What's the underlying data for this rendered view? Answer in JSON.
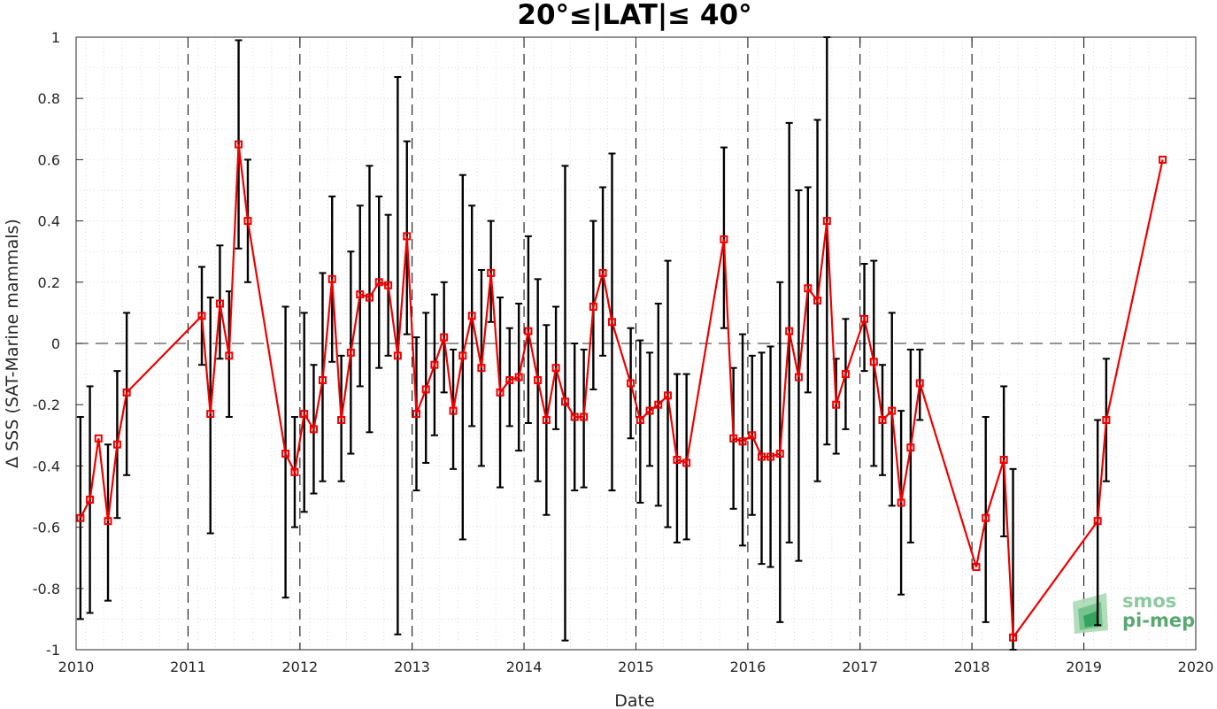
{
  "chart_data": {
    "type": "line",
    "title": "20°≤|LAT|≤ 40°",
    "xlabel": "Date",
    "ylabel": "Δ SSS (SAT-Marine mammals)",
    "xlim": [
      "2010-01-01",
      "2020-01-01"
    ],
    "ylim": [
      -1,
      1
    ],
    "x_ticks": [
      "2010",
      "2011",
      "2012",
      "2013",
      "2014",
      "2015",
      "2016",
      "2017",
      "2018",
      "2019",
      "2020"
    ],
    "y_ticks": [
      "-1",
      "-0.8",
      "-0.6",
      "-0.4",
      "-0.2",
      "0",
      "0.2",
      "0.4",
      "0.6",
      "0.8",
      "1"
    ],
    "year_separators": [
      "2011",
      "2012",
      "2013",
      "2014",
      "2015",
      "2016",
      "2017",
      "2018",
      "2019"
    ],
    "zero_line": 0,
    "grid": true,
    "colors": {
      "series": "#ee0000",
      "errorbar": "#000000",
      "grid": "#d0d0d0",
      "separator": "#000000"
    },
    "series": [
      {
        "x": [
          "2010-01-15",
          "2010-02-15",
          "2010-03-15",
          "2010-04-15",
          "2010-05-15",
          "2010-06-15",
          "2011-02-15",
          "2011-03-15",
          "2011-04-15",
          "2011-05-15",
          "2011-06-15",
          "2011-07-15",
          "2011-11-15",
          "2011-12-15",
          "2012-01-15",
          "2012-02-15",
          "2012-03-15",
          "2012-04-15",
          "2012-05-15",
          "2012-06-15",
          "2012-07-15",
          "2012-08-15",
          "2012-09-15",
          "2012-10-15",
          "2012-11-15",
          "2012-12-15",
          "2013-01-15",
          "2013-02-15",
          "2013-03-15",
          "2013-04-15",
          "2013-05-15",
          "2013-06-15",
          "2013-07-15",
          "2013-08-15",
          "2013-09-15",
          "2013-10-15",
          "2013-11-15",
          "2013-12-15",
          "2014-01-15",
          "2014-02-15",
          "2014-03-15",
          "2014-04-15",
          "2014-05-15",
          "2014-06-15",
          "2014-07-15",
          "2014-08-15",
          "2014-09-15",
          "2014-10-15",
          "2014-12-15",
          "2015-01-15",
          "2015-02-15",
          "2015-03-15",
          "2015-04-15",
          "2015-05-15",
          "2015-06-15",
          "2015-10-15",
          "2015-11-15",
          "2015-12-15",
          "2016-01-15",
          "2016-02-15",
          "2016-03-15",
          "2016-04-15",
          "2016-05-15",
          "2016-06-15",
          "2016-07-15",
          "2016-08-15",
          "2016-09-15",
          "2016-10-15",
          "2016-11-15",
          "2017-01-15",
          "2017-02-15",
          "2017-03-15",
          "2017-04-15",
          "2017-05-15",
          "2017-06-15",
          "2017-07-15",
          "2018-01-15",
          "2018-02-15",
          "2018-04-15",
          "2018-05-15",
          "2019-02-15",
          "2019-03-15",
          "2019-09-15"
        ],
        "y": [
          -0.57,
          -0.51,
          -0.31,
          -0.58,
          -0.33,
          -0.16,
          0.09,
          -0.23,
          0.13,
          -0.04,
          0.65,
          0.4,
          -0.36,
          -0.42,
          -0.23,
          -0.28,
          -0.12,
          0.21,
          -0.25,
          -0.03,
          0.16,
          0.15,
          0.2,
          0.19,
          -0.04,
          0.35,
          -0.23,
          -0.15,
          -0.07,
          0.02,
          -0.22,
          -0.04,
          0.09,
          -0.08,
          0.23,
          -0.16,
          -0.12,
          -0.11,
          0.04,
          -0.12,
          -0.25,
          -0.08,
          -0.19,
          -0.24,
          -0.24,
          0.12,
          0.23,
          0.07,
          -0.13,
          -0.25,
          -0.22,
          -0.2,
          -0.17,
          -0.38,
          -0.39,
          0.34,
          -0.31,
          -0.32,
          -0.3,
          -0.37,
          -0.37,
          -0.36,
          0.04,
          -0.11,
          0.18,
          0.14,
          0.4,
          -0.2,
          -0.1,
          0.08,
          -0.06,
          -0.25,
          -0.22,
          -0.52,
          -0.34,
          -0.13,
          -0.73,
          -0.57,
          -0.38,
          -0.96,
          -0.58,
          -0.25,
          0.6
        ],
        "err_low": [
          -0.9,
          -0.88,
          0.0,
          -0.84,
          -0.57,
          -0.43,
          -0.07,
          -0.62,
          -0.05,
          -0.24,
          0.31,
          0.2,
          -0.83,
          -0.6,
          -0.55,
          -0.49,
          -0.45,
          -0.06,
          -0.45,
          -0.36,
          -0.14,
          -0.29,
          -0.08,
          -0.04,
          -0.95,
          0.03,
          -0.48,
          -0.39,
          -0.3,
          -0.16,
          -0.41,
          -0.64,
          -0.27,
          -0.4,
          0.07,
          -0.47,
          -0.27,
          -0.35,
          -0.26,
          -0.45,
          -0.56,
          -0.28,
          -0.97,
          -0.48,
          -0.47,
          -0.15,
          -0.04,
          -0.48,
          -0.31,
          -0.52,
          -0.4,
          -0.53,
          -0.6,
          -0.65,
          -0.64,
          0.05,
          -0.54,
          -0.66,
          -0.56,
          -0.72,
          -0.73,
          -0.91,
          -0.65,
          -0.71,
          -0.16,
          -0.45,
          -0.33,
          -0.36,
          -0.28,
          -0.09,
          -0.4,
          -0.43,
          -0.53,
          -0.82,
          -0.65,
          -0.25,
          -0.73,
          -0.91,
          -0.63,
          -1.0,
          -0.92,
          -0.45,
          0.6
        ],
        "err_high": [
          -0.24,
          -0.14,
          0.0,
          -0.33,
          -0.09,
          0.1,
          0.25,
          0.15,
          0.32,
          0.17,
          0.99,
          0.6,
          0.12,
          -0.24,
          0.1,
          -0.07,
          0.23,
          0.48,
          -0.04,
          0.3,
          0.45,
          0.58,
          0.48,
          0.42,
          0.87,
          0.66,
          0.02,
          0.1,
          0.16,
          0.2,
          -0.02,
          0.55,
          0.45,
          0.24,
          0.4,
          0.15,
          0.05,
          0.13,
          0.35,
          0.21,
          0.06,
          0.12,
          0.58,
          0.0,
          -0.02,
          0.4,
          0.51,
          0.62,
          0.05,
          0.01,
          -0.03,
          0.13,
          0.27,
          -0.1,
          -0.1,
          0.64,
          -0.08,
          0.03,
          -0.04,
          -0.03,
          -0.01,
          0.2,
          0.72,
          0.5,
          0.51,
          0.73,
          1.0,
          -0.05,
          0.08,
          0.26,
          0.27,
          -0.07,
          0.1,
          -0.22,
          -0.02,
          -0.02,
          -0.73,
          -0.24,
          -0.14,
          -0.41,
          -0.25,
          -0.05,
          0.6
        ]
      }
    ]
  },
  "logo": {
    "line1": "smos",
    "line2": "pi-mep"
  }
}
